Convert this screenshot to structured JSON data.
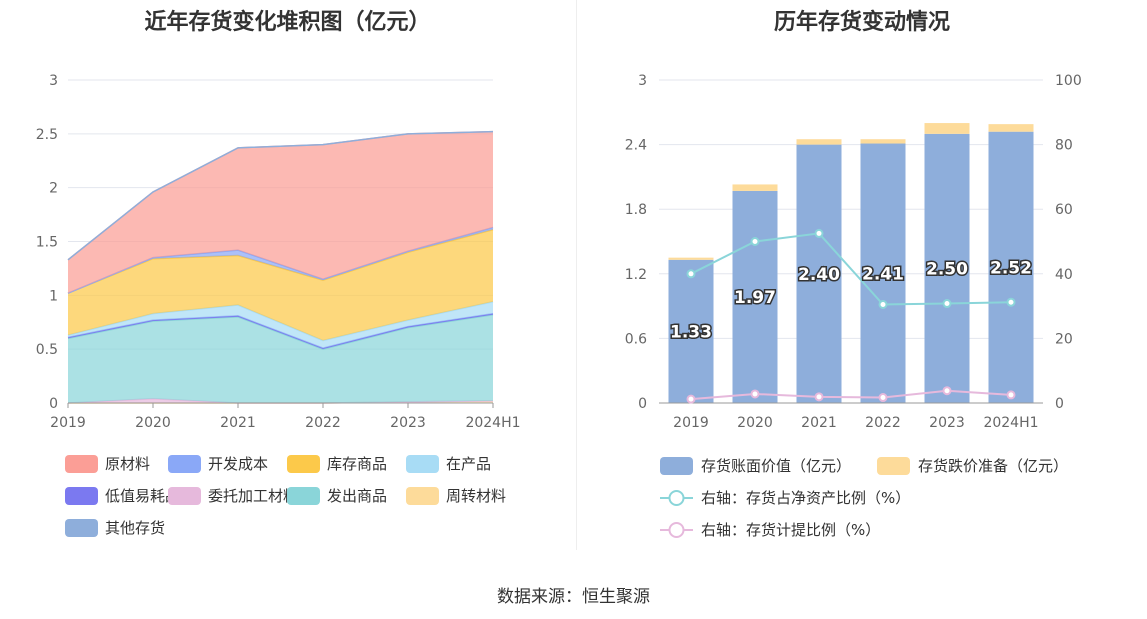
{
  "source_label": "数据来源：恒生聚源",
  "chart_data": [
    {
      "type": "area",
      "title": "近年存货变化堆积图（亿元）",
      "x": [
        "2019",
        "2020",
        "2021",
        "2022",
        "2023",
        "2024H1"
      ],
      "ylim": [
        0,
        3
      ],
      "yticks": [
        "0",
        "0.5",
        "1",
        "1.5",
        "2",
        "2.5",
        "3"
      ],
      "grid": true,
      "legend_position": "bottom",
      "series": [
        {
          "name": "周转材料",
          "color": "#fddb9a",
          "values": [
            0,
            0,
            0,
            0,
            0.01,
            0.02
          ]
        },
        {
          "name": "委托加工材料",
          "color": "#e6b9dc",
          "values": [
            0,
            0.04,
            0,
            0,
            0,
            0
          ]
        },
        {
          "name": "发出商品",
          "color": "#8ad5d9",
          "values": [
            0.6,
            0.72,
            0.8,
            0.5,
            0.69,
            0.8
          ]
        },
        {
          "name": "低值易耗品",
          "color": "#7b79f0",
          "values": [
            0.01,
            0.01,
            0.01,
            0.01,
            0.01,
            0.01
          ]
        },
        {
          "name": "在产品",
          "color": "#a8dcf5",
          "values": [
            0.02,
            0.06,
            0.1,
            0.07,
            0.06,
            0.11
          ]
        },
        {
          "name": "库存商品",
          "color": "#fcc94a",
          "values": [
            0.39,
            0.51,
            0.46,
            0.56,
            0.63,
            0.67
          ]
        },
        {
          "name": "开发成本",
          "color": "#8aa8f7",
          "values": [
            0,
            0.01,
            0.05,
            0.01,
            0.01,
            0.02
          ]
        },
        {
          "name": "原材料",
          "color": "#fb9e96",
          "values": [
            0.31,
            0.61,
            0.95,
            1.25,
            1.09,
            0.89
          ]
        },
        {
          "name": "其他存货",
          "color": "#8eaedb",
          "values": [
            0,
            0,
            0,
            0,
            0,
            0
          ]
        }
      ],
      "legend_order": [
        "原材料",
        "开发成本",
        "库存商品",
        "在产品",
        "低值易耗品",
        "委托加工材料",
        "发出商品",
        "周转材料",
        "其他存货"
      ]
    },
    {
      "type": "bar",
      "title": "历年存货变动情况",
      "categories": [
        "2019",
        "2020",
        "2021",
        "2022",
        "2023",
        "2024H1"
      ],
      "ylim": [
        0,
        3
      ],
      "yticks": [
        "0",
        "0.6",
        "1.2",
        "1.8",
        "2.4",
        "3"
      ],
      "y2lim": [
        0,
        100
      ],
      "y2ticks": [
        "0",
        "20",
        "40",
        "60",
        "80",
        "100"
      ],
      "grid": true,
      "legend_position": "bottom",
      "series": [
        {
          "name": "存货账面价值（亿元）",
          "type": "bar",
          "color": "#8eaedb",
          "values": [
            1.33,
            1.97,
            2.4,
            2.41,
            2.5,
            2.52
          ],
          "labels": [
            "1.33",
            "1.97",
            "2.40",
            "2.41",
            "2.50",
            "2.52"
          ]
        },
        {
          "name": "存货跌价准备（亿元）",
          "type": "bar",
          "color": "#fddb9a",
          "values": [
            0.02,
            0.06,
            0.05,
            0.04,
            0.1,
            0.07
          ]
        },
        {
          "name": "右轴：存货占净资产比例（%）",
          "type": "line",
          "axis": "right",
          "color": "#8ad5d9",
          "values": [
            40,
            50,
            52.5,
            30.5,
            30.8,
            31.2
          ]
        },
        {
          "name": "右轴：存货计提比例（%）",
          "type": "line",
          "axis": "right",
          "color": "#e6b9dc",
          "values": [
            1.2,
            2.8,
            1.9,
            1.7,
            3.8,
            2.5
          ]
        }
      ]
    }
  ]
}
